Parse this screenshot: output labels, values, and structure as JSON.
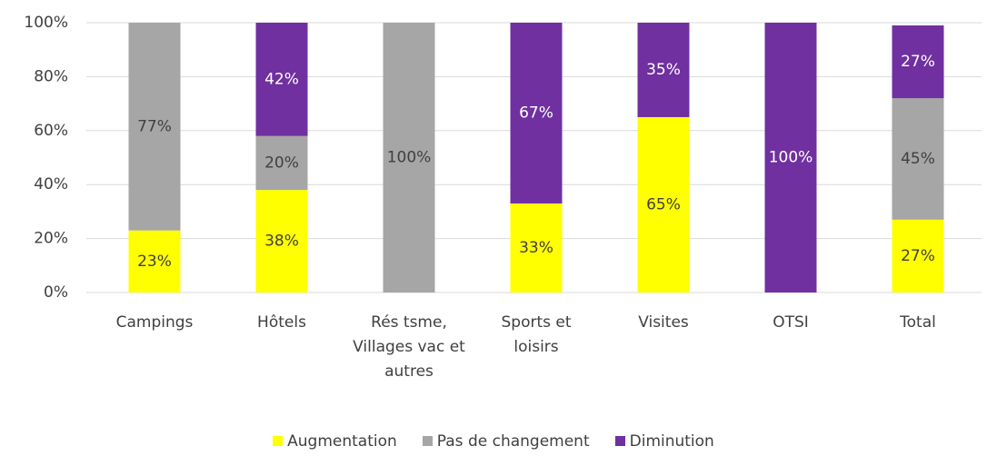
{
  "chart_data": {
    "type": "stacked_bar",
    "categories": [
      "Campings",
      "Hôtels",
      "Rés tsme, Villages vac et autres",
      "Sports et loisirs",
      "Visites",
      "OTSI",
      "Total"
    ],
    "series": [
      {
        "name": "Augmentation",
        "color": "#ffff00",
        "label_color": "#404040",
        "values": [
          23,
          38,
          null,
          33,
          65,
          null,
          27
        ],
        "value_labels": [
          "23%",
          "38%",
          null,
          "33%",
          "65%",
          null,
          "27%"
        ]
      },
      {
        "name": "Pas de changement",
        "color": "#a6a6a6",
        "label_color": "#404040",
        "values": [
          77,
          20,
          100,
          null,
          null,
          null,
          45
        ],
        "value_labels": [
          "77%",
          "20%",
          "100%",
          null,
          null,
          null,
          "45%"
        ]
      },
      {
        "name": "Diminution",
        "color": "#7030a0",
        "label_color": "#ffffff",
        "values": [
          null,
          42,
          null,
          67,
          35,
          100,
          27
        ],
        "value_labels": [
          null,
          "42%",
          null,
          "67%",
          "35%",
          "100%",
          "27%"
        ]
      }
    ],
    "ylim": [
      0,
      100
    ],
    "yticks": [
      {
        "value": 0,
        "label": "0%"
      },
      {
        "value": 20,
        "label": "20%"
      },
      {
        "value": 40,
        "label": "40%"
      },
      {
        "value": 60,
        "label": "60%"
      },
      {
        "value": 80,
        "label": "80%"
      },
      {
        "value": 100,
        "label": "100%"
      }
    ],
    "grid": true,
    "legend": "bottom"
  }
}
